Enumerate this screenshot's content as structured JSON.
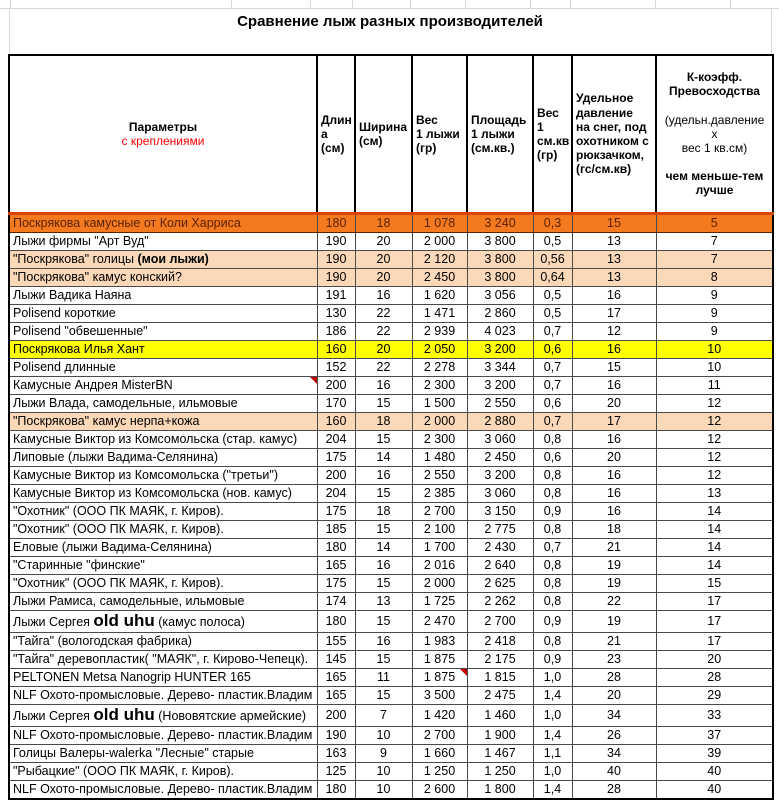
{
  "title": "Сравнение лыж разных производителей",
  "colors": {
    "orange_row_bg": "#F4791F",
    "orange_row_text": "#5C2300",
    "orange_row_border": "#D84300",
    "peach_row_bg": "#FAD8B8",
    "yellow_row_bg": "#FFFF00",
    "header_red_text": "#FF0000",
    "comment_marker": "#C00000",
    "grid_border": "#4A4A4A"
  },
  "icons": {
    "comment_marker": "red-corner-triangle"
  },
  "table": {
    "headers": {
      "params_line1": "Параметры",
      "params_line2": "с креплениями",
      "length": "Длин\nа (см)",
      "width": "Ширина\n(см)",
      "weight": "Вес\n1 лыжи\n(гр)",
      "area": "Площадь\n1 лыжи\n(см.кв.)",
      "weight_per_cm2": "Вес\n1 см.кв\n(гр)",
      "pressure": "Удельное\nдавление\nна снег, под\nохотником с\nрюкзачком,\n(гс/см.кв)",
      "k_bold1": "К-коэфф.\nПревосходства",
      "k_normal": "(удельн.давление\nх\nвес 1 кв.см)",
      "k_bold2": "чем меньше-тем\nлучше"
    },
    "rows": [
      {
        "name": "Поскрякова камусные от Коли Харриса",
        "length": "180",
        "width": "18",
        "weight": "1 078",
        "area": "3 240",
        "w_cm2": "0,3",
        "pressure": "15",
        "k": "5",
        "style": "orange"
      },
      {
        "name": "Лыжи фирмы \"Арт Вуд\"",
        "length": "190",
        "width": "20",
        "weight": "2 000",
        "area": "3 800",
        "w_cm2": "0,5",
        "pressure": "13",
        "k": "7"
      },
      {
        "name": "\"Поскрякова\" голицы ",
        "bold": "(мои лыжи)",
        "length": "190",
        "width": "20",
        "weight": "2 120",
        "area": "3 800",
        "w_cm2": "0,56",
        "pressure": "13",
        "k": "7",
        "style": "peach"
      },
      {
        "name": "\"Поскрякова\" камус конский?",
        "length": "190",
        "width": "20",
        "weight": "2 450",
        "area": "3 800",
        "w_cm2": "0,64",
        "pressure": "13",
        "k": "8",
        "style": "peach"
      },
      {
        "name": "Лыжи Вадика Наяна",
        "length": "191",
        "width": "16",
        "weight": "1 620",
        "area": "3 056",
        "w_cm2": "0,5",
        "pressure": "16",
        "k": "9"
      },
      {
        "name": "Polisend короткие",
        "length": "130",
        "width": "22",
        "weight": "1 471",
        "area": "2 860",
        "w_cm2": "0,5",
        "pressure": "17",
        "k": "9"
      },
      {
        "name": "Polisend \"обвешенные\"",
        "length": "186",
        "width": "22",
        "weight": "2 939",
        "area": "4 023",
        "w_cm2": "0,7",
        "pressure": "12",
        "k": "9"
      },
      {
        "name": "Поскрякова Илья Хант",
        "length": "160",
        "width": "20",
        "weight": "2 050",
        "area": "3 200",
        "w_cm2": "0,6",
        "pressure": "16",
        "k": "10",
        "style": "yellow"
      },
      {
        "name": "Polisend длинные",
        "length": "152",
        "width": "22",
        "weight": "2 278",
        "area": "3 344",
        "w_cm2": "0,7",
        "pressure": "15",
        "k": "10"
      },
      {
        "name": "Камусные Андрея MisterBN",
        "marker": "name",
        "length": "200",
        "width": "16",
        "weight": "2 300",
        "area": "3 200",
        "w_cm2": "0,7",
        "pressure": "16",
        "k": "11"
      },
      {
        "name": "Лыжи Влада, самодельные, ильмовые",
        "length": "170",
        "width": "15",
        "weight": "1 500",
        "area": "2 550",
        "w_cm2": "0,6",
        "pressure": "20",
        "k": "12"
      },
      {
        "name": "\"Поскрякова\" камус нерпа+кожа",
        "length": "160",
        "width": "18",
        "weight": "2 000",
        "area": "2 880",
        "w_cm2": "0,7",
        "pressure": "17",
        "k": "12",
        "style": "peach"
      },
      {
        "name": "Камусные Виктор из Комсомольска (стар. камус)",
        "length": "204",
        "width": "15",
        "weight": "2 300",
        "area": "3 060",
        "w_cm2": "0,8",
        "pressure": "16",
        "k": "12"
      },
      {
        "name": "Липовые (лыжи Вадима-Селянина)",
        "length": "175",
        "width": "14",
        "weight": "1 480",
        "area": "2 450",
        "w_cm2": "0,6",
        "pressure": "20",
        "k": "12"
      },
      {
        "name": "Камусные Виктор из Комсомольска (\"третьи\")",
        "length": "200",
        "width": "16",
        "weight": "2 550",
        "area": "3 200",
        "w_cm2": "0,8",
        "pressure": "16",
        "k": "12"
      },
      {
        "name": "Камусные Виктор из Комсомольска (нов. камус)",
        "length": "204",
        "width": "15",
        "weight": "2 385",
        "area": "3 060",
        "w_cm2": "0,8",
        "pressure": "16",
        "k": "13"
      },
      {
        "name": "\"Охотник\" (ООО ПК МАЯК, г. Киров).",
        "length": "175",
        "width": "18",
        "weight": "2 700",
        "area": "3 150",
        "w_cm2": "0,9",
        "pressure": "16",
        "k": "14"
      },
      {
        "name": "\"Охотник\" (ООО ПК МАЯК, г. Киров).",
        "length": "185",
        "width": "15",
        "weight": "2 100",
        "area": "2 775",
        "w_cm2": "0,8",
        "pressure": "18",
        "k": "14"
      },
      {
        "name": "Еловые (лыжи Вадима-Селянина)",
        "length": "180",
        "width": "14",
        "weight": "1 700",
        "area": "2 430",
        "w_cm2": "0,7",
        "pressure": "21",
        "k": "14"
      },
      {
        "name": "\"Старинные \"финские\"",
        "length": "165",
        "width": "16",
        "weight": "2 016",
        "area": "2 640",
        "w_cm2": "0,8",
        "pressure": "19",
        "k": "14"
      },
      {
        "name": "\"Охотник\" (ООО ПК МАЯК, г. Киров).",
        "length": "175",
        "width": "15",
        "weight": "2 000",
        "area": "2 625",
        "w_cm2": "0,8",
        "pressure": "19",
        "k": "15"
      },
      {
        "name": "Лыжи Рамиса, самодельные, ильмовые",
        "length": "174",
        "width": "13",
        "weight": "1 725",
        "area": "2 262",
        "w_cm2": "0,8",
        "pressure": "22",
        "k": "17"
      },
      {
        "name": "Лыжи Сергея ",
        "big": "old uhu",
        "post": "  (камус полоса)",
        "length": "180",
        "width": "15",
        "weight": "2 470",
        "area": "2 700",
        "w_cm2": "0,9",
        "pressure": "19",
        "k": "17"
      },
      {
        "name": "\"Тайга\"  (вологодская фабрика)",
        "length": "155",
        "width": "16",
        "weight": "1 983",
        "area": "2 418",
        "w_cm2": "0,8",
        "pressure": "21",
        "k": "17"
      },
      {
        "name": "\"Тайга\" деревопластик( \"МАЯК\", г. Кирово-Чепецк).",
        "length": "145",
        "width": "15",
        "weight": "1 875",
        "area": "2 175",
        "w_cm2": "0,9",
        "pressure": "23",
        "k": "20"
      },
      {
        "name": "PELTONEN Metsa Nanogrip HUNTER 165",
        "marker": "weight",
        "length": "165",
        "width": "11",
        "weight": "1 875",
        "area": "1 815",
        "w_cm2": "1,0",
        "pressure": "28",
        "k": "28"
      },
      {
        "name": "NLF Охото-промысловые. Дерево- пластик.Владим",
        "length": "165",
        "width": "15",
        "weight": "3 500",
        "area": "2 475",
        "w_cm2": "1,4",
        "pressure": "20",
        "k": "29"
      },
      {
        "name": "Лыжи Сергея ",
        "big": "old uhu",
        "post": "  (Нововятские армейские)",
        "length": "200",
        "width": "7",
        "weight": "1 420",
        "area": "1 460",
        "w_cm2": "1,0",
        "pressure": "34",
        "k": "33"
      },
      {
        "name": "NLF Охото-промысловые. Дерево- пластик.Владим",
        "length": "190",
        "width": "10",
        "weight": "2 700",
        "area": "1 900",
        "w_cm2": "1,4",
        "pressure": "26",
        "k": "37"
      },
      {
        "name": "Голицы Валеры-walerka  \"Лесные\" старые",
        "length": "163",
        "width": "9",
        "weight": "1 660",
        "area": "1 467",
        "w_cm2": "1,1",
        "pressure": "34",
        "k": "39"
      },
      {
        "name": "\"Рыбацкие\" (ООО ПК МАЯК, г. Киров).",
        "length": "125",
        "width": "10",
        "weight": "1 250",
        "area": "1 250",
        "w_cm2": "1,0",
        "pressure": "40",
        "k": "40"
      },
      {
        "name": "NLF Охото-промысловые. Дерево- пластик.Владим",
        "length": "180",
        "width": "10",
        "weight": "2 600",
        "area": "1 800",
        "w_cm2": "1,4",
        "pressure": "28",
        "k": "40"
      }
    ]
  }
}
